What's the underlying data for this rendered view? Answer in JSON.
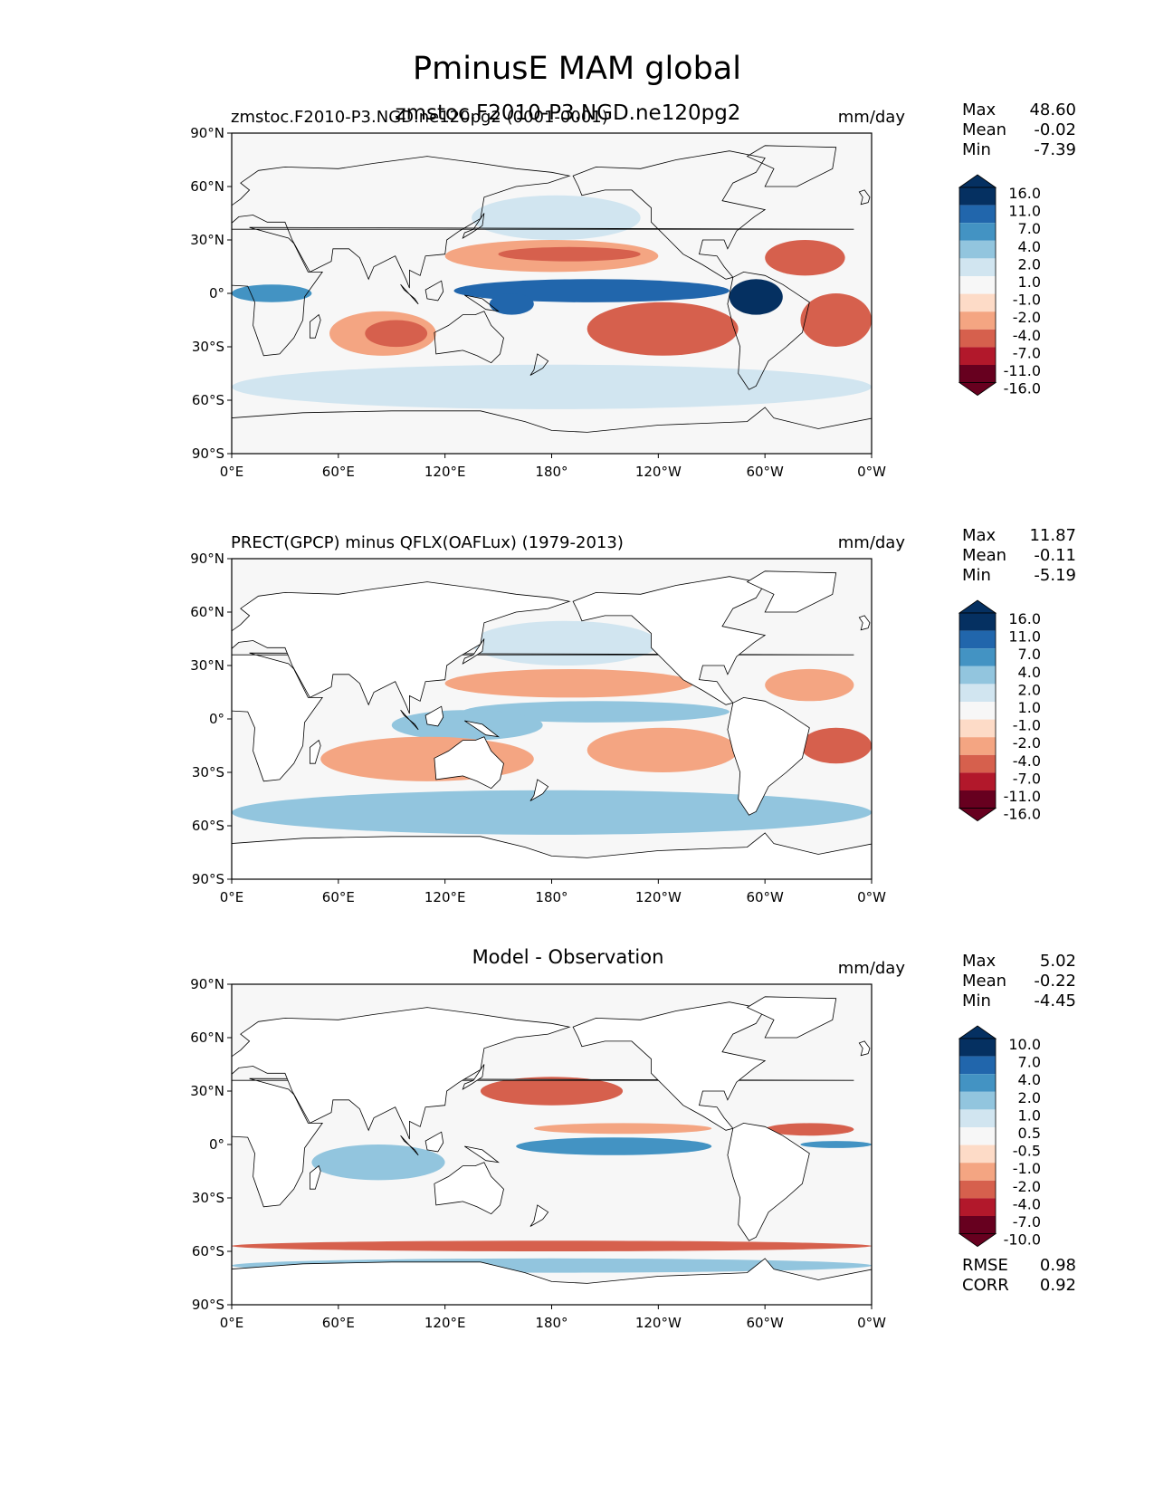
{
  "suptitle": "PminusE MAM global",
  "units": "mm/day",
  "colors": {
    "blue": [
      "#053061",
      "#2166ac",
      "#4393c3",
      "#92c5de",
      "#d1e5f0"
    ],
    "neutral": "#f7f7f7",
    "red": [
      "#fddbc7",
      "#f4a582",
      "#d6604d",
      "#b2182b",
      "#67001f"
    ]
  },
  "panels": [
    {
      "id": "test",
      "title_left": "zmstoc.F2010-P3.NGD.ne120pg2 (0001-0001)",
      "title_center": "zmstoc.F2010-P3.NGD.ne120pg2",
      "title_right": "mm/day",
      "stats": [
        {
          "label": "Max",
          "value": "48.60"
        },
        {
          "label": "Mean",
          "value": "-0.02"
        },
        {
          "label": "Min",
          "value": "-7.39"
        }
      ],
      "levels": [
        "16.0",
        "11.0",
        "7.0",
        "4.0",
        "2.0",
        "1.0",
        "-1.0",
        "-2.0",
        "-4.0",
        "-7.0",
        "-11.0",
        "-16.0"
      ]
    },
    {
      "id": "reference",
      "title_left": "PRECT(GPCP) minus QFLX(OAFLux) (1979-2013)",
      "title_center": "",
      "title_right": "mm/day",
      "stats": [
        {
          "label": "Max",
          "value": "11.87"
        },
        {
          "label": "Mean",
          "value": "-0.11"
        },
        {
          "label": "Min",
          "value": "-5.19"
        }
      ],
      "levels": [
        "16.0",
        "11.0",
        "7.0",
        "4.0",
        "2.0",
        "1.0",
        "-1.0",
        "-2.0",
        "-4.0",
        "-7.0",
        "-11.0",
        "-16.0"
      ]
    },
    {
      "id": "diff",
      "title_left": "",
      "title_center": "Model - Observation",
      "title_right": "mm/day",
      "stats": [
        {
          "label": "Max",
          "value": "5.02"
        },
        {
          "label": "Mean",
          "value": "-0.22"
        },
        {
          "label": "Min",
          "value": "-4.45"
        }
      ],
      "levels": [
        "10.0",
        "7.0",
        "4.0",
        "2.0",
        "1.0",
        "0.5",
        "-0.5",
        "-1.0",
        "-2.0",
        "-4.0",
        "-7.0",
        "-10.0"
      ],
      "metrics": [
        {
          "label": "RMSE",
          "value": "0.98"
        },
        {
          "label": "CORR",
          "value": "0.92"
        }
      ]
    }
  ],
  "chart_data": [
    {
      "type": "heatmap",
      "title": "zmstoc.F2010-P3.NGD.ne120pg2",
      "subtitle": "zmstoc.F2010-P3.NGD.ne120pg2 (0001-0001)",
      "units": "mm/day",
      "x_ticks": [
        "0°E",
        "60°E",
        "120°E",
        "180°",
        "120°W",
        "60°W",
        "0°W"
      ],
      "y_ticks": [
        "90°N",
        "60°N",
        "30°N",
        "0°",
        "30°S",
        "60°S",
        "90°S"
      ],
      "xlim": [
        0,
        360
      ],
      "ylim": [
        -90,
        90
      ],
      "contour_levels": [
        -16,
        -11,
        -7,
        -4,
        -2,
        -1,
        1,
        2,
        4,
        7,
        11,
        16
      ],
      "stats": {
        "max": 48.6,
        "mean": -0.02,
        "min": -7.39
      },
      "features": [
        {
          "lon": [
            125,
            280
          ],
          "lat": [
            -5,
            8
          ],
          "level": 7
        },
        {
          "lon": [
            145,
            170
          ],
          "lat": [
            -12,
            0
          ],
          "level": 7
        },
        {
          "lon": [
            280,
            310
          ],
          "lat": [
            -12,
            8
          ],
          "level": 11
        },
        {
          "lon": [
            0,
            45
          ],
          "lat": [
            -5,
            5
          ],
          "level": 4
        },
        {
          "lon": [
            120,
            240
          ],
          "lat": [
            12,
            30
          ],
          "level": -2
        },
        {
          "lon": [
            150,
            230
          ],
          "lat": [
            18,
            26
          ],
          "level": -4
        },
        {
          "lon": [
            300,
            345
          ],
          "lat": [
            10,
            30
          ],
          "level": -4
        },
        {
          "lon": [
            55,
            115
          ],
          "lat": [
            -35,
            -10
          ],
          "level": -2
        },
        {
          "lon": [
            75,
            110
          ],
          "lat": [
            -30,
            -15
          ],
          "level": -4
        },
        {
          "lon": [
            200,
            285
          ],
          "lat": [
            -35,
            -5
          ],
          "level": -4
        },
        {
          "lon": [
            320,
            360
          ],
          "lat": [
            -30,
            0
          ],
          "level": -4
        },
        {
          "lon": [
            0,
            360
          ],
          "lat": [
            -65,
            -40
          ],
          "level": 1
        },
        {
          "lon": [
            135,
            230
          ],
          "lat": [
            30,
            55
          ],
          "level": 1
        }
      ]
    },
    {
      "type": "heatmap",
      "title": "PRECT(GPCP) minus QFLX(OAFLux) (1979-2013)",
      "units": "mm/day",
      "x_ticks": [
        "0°E",
        "60°E",
        "120°E",
        "180°",
        "120°W",
        "60°W",
        "0°W"
      ],
      "y_ticks": [
        "90°N",
        "60°N",
        "30°N",
        "0°",
        "30°S",
        "60°S",
        "90°S"
      ],
      "xlim": [
        0,
        360
      ],
      "ylim": [
        -90,
        90
      ],
      "contour_levels": [
        -16,
        -11,
        -7,
        -4,
        -2,
        -1,
        1,
        2,
        4,
        7,
        11,
        16
      ],
      "stats": {
        "max": 11.87,
        "mean": -0.11,
        "min": -5.19
      },
      "features": [
        {
          "lon": [
            130,
            280
          ],
          "lat": [
            -2,
            10
          ],
          "level": 2
        },
        {
          "lon": [
            90,
            175
          ],
          "lat": [
            -12,
            5
          ],
          "level": 2
        },
        {
          "lon": [
            135,
            240
          ],
          "lat": [
            30,
            55
          ],
          "level": 1
        },
        {
          "lon": [
            120,
            260
          ],
          "lat": [
            12,
            28
          ],
          "level": -2
        },
        {
          "lon": [
            300,
            350
          ],
          "lat": [
            10,
            28
          ],
          "level": -2
        },
        {
          "lon": [
            50,
            170
          ],
          "lat": [
            -35,
            -10
          ],
          "level": -2
        },
        {
          "lon": [
            200,
            285
          ],
          "lat": [
            -30,
            -5
          ],
          "level": -2
        },
        {
          "lon": [
            320,
            360
          ],
          "lat": [
            -25,
            -5
          ],
          "level": -4
        },
        {
          "lon": [
            0,
            360
          ],
          "lat": [
            -65,
            -40
          ],
          "level": 2
        }
      ]
    },
    {
      "type": "heatmap",
      "title": "Model - Observation",
      "units": "mm/day",
      "x_ticks": [
        "0°E",
        "60°E",
        "120°E",
        "180°",
        "120°W",
        "60°W",
        "0°W"
      ],
      "y_ticks": [
        "90°N",
        "60°N",
        "30°N",
        "0°",
        "30°S",
        "60°S",
        "90°S"
      ],
      "xlim": [
        0,
        360
      ],
      "ylim": [
        -90,
        90
      ],
      "contour_levels": [
        -10,
        -7,
        -4,
        -2,
        -1,
        -0.5,
        0.5,
        1,
        2,
        4,
        7,
        10
      ],
      "stats": {
        "max": 5.02,
        "mean": -0.22,
        "min": -4.45,
        "rmse": 0.98,
        "corr": 0.92
      },
      "features": [
        {
          "lon": [
            160,
            270
          ],
          "lat": [
            -6,
            4
          ],
          "level": 2
        },
        {
          "lon": [
            45,
            120
          ],
          "lat": [
            -20,
            0
          ],
          "level": 1
        },
        {
          "lon": [
            140,
            220
          ],
          "lat": [
            22,
            38
          ],
          "level": -2
        },
        {
          "lon": [
            300,
            350
          ],
          "lat": [
            5,
            12
          ],
          "level": -2
        },
        {
          "lon": [
            170,
            270
          ],
          "lat": [
            6,
            12
          ],
          "level": -1
        },
        {
          "lon": [
            0,
            360
          ],
          "lat": [
            -60,
            -54
          ],
          "level": -2
        },
        {
          "lon": [
            0,
            360
          ],
          "lat": [
            -72,
            -64
          ],
          "level": 1
        },
        {
          "lon": [
            320,
            360
          ],
          "lat": [
            -2,
            2
          ],
          "level": 2
        }
      ]
    }
  ]
}
